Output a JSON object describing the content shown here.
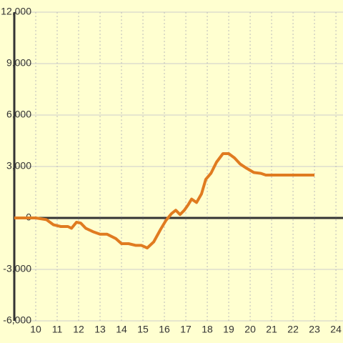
{
  "chart_data": {
    "type": "line",
    "x": [
      9,
      10,
      10.5,
      10.83,
      11.17,
      11.5,
      11.67,
      11.9,
      12.1,
      12.33,
      12.67,
      13,
      13.33,
      13.73,
      14,
      14.33,
      14.67,
      14.93,
      15.2,
      15.5,
      15.83,
      16.07,
      16.33,
      16.53,
      16.73,
      16.93,
      17.1,
      17.27,
      17.5,
      17.73,
      17.93,
      18.17,
      18.43,
      18.73,
      19,
      19.27,
      19.53,
      19.83,
      20.17,
      20.5,
      20.73,
      21.17,
      23
    ],
    "series": [
      {
        "color": "#e07b20",
        "values": [
          0,
          0,
          -100,
          -400,
          -500,
          -500,
          -600,
          -250,
          -300,
          -600,
          -800,
          -950,
          -950,
          -1200,
          -1500,
          -1500,
          -1600,
          -1600,
          -1750,
          -1400,
          -650,
          -150,
          250,
          450,
          200,
          450,
          750,
          1100,
          900,
          1400,
          2250,
          2600,
          3250,
          3750,
          3750,
          3500,
          3150,
          2900,
          2650,
          2600,
          2500,
          2500,
          2500
        ]
      }
    ],
    "xlim": [
      9,
      24.33
    ],
    "xticks": [
      10,
      11,
      12,
      13,
      14,
      15,
      16,
      17,
      18,
      19,
      20,
      21,
      22,
      23,
      24
    ],
    "ylim": [
      -6000,
      12000
    ],
    "yticks": [
      {
        "value": -6000,
        "label": "-6,000"
      },
      {
        "value": -3000,
        "label": "-3,000"
      },
      0,
      {
        "value": 3000,
        "label": "3,000"
      },
      {
        "value": 6000,
        "label": "6,000"
      },
      {
        "value": 9000,
        "label": "9,000"
      },
      {
        "value": 12000,
        "label": "12,000"
      }
    ],
    "grid": true
  }
}
